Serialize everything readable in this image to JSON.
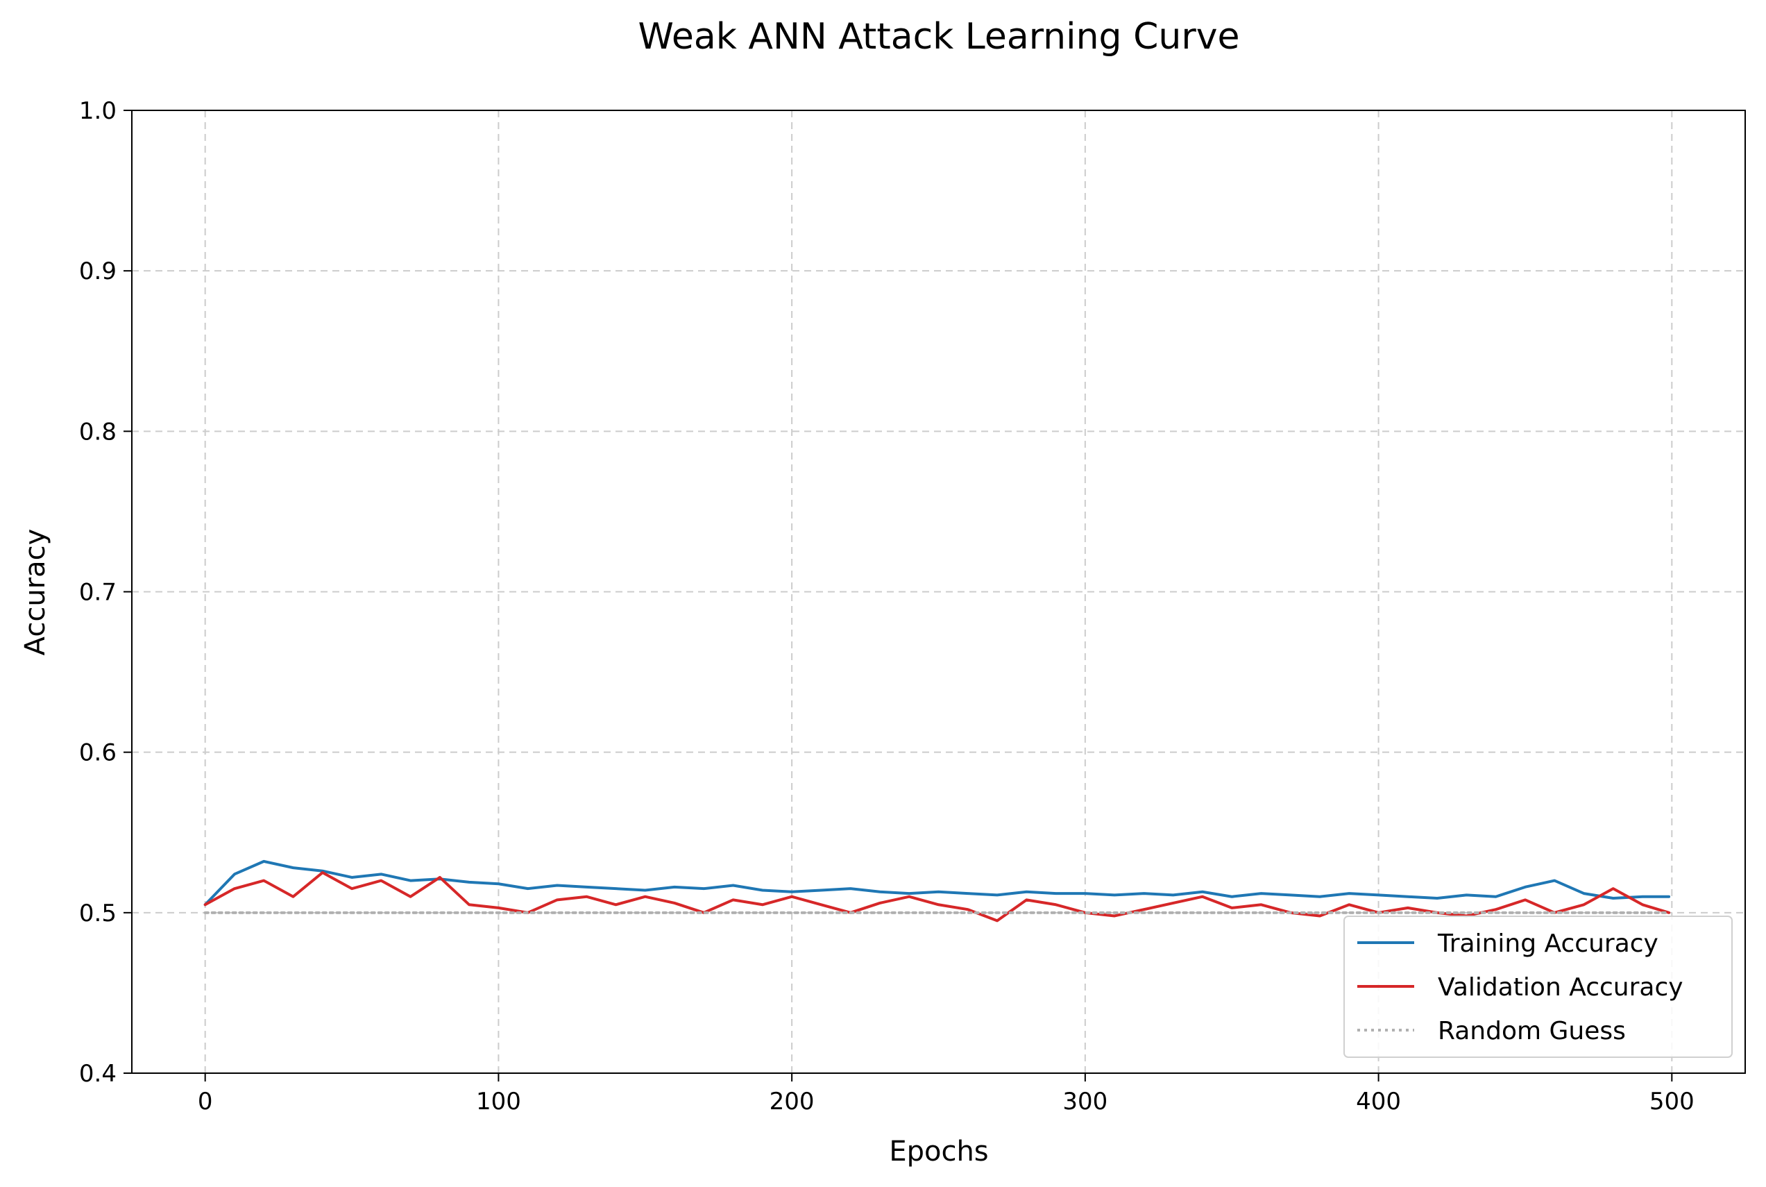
{
  "chart_data": {
    "type": "line",
    "title": "Weak ANN Attack Learning Curve",
    "xlabel": "Epochs",
    "ylabel": "Accuracy",
    "xlim": [
      -25,
      525
    ],
    "ylim": [
      0.4,
      1.0
    ],
    "x_ticks": [
      0,
      100,
      200,
      300,
      400,
      500
    ],
    "y_ticks": [
      0.4,
      0.5,
      0.6,
      0.7,
      0.8,
      0.9,
      1.0
    ],
    "x_tick_labels": [
      "0",
      "100",
      "200",
      "300",
      "400",
      "500"
    ],
    "y_tick_labels": [
      "0.4",
      "0.5",
      "0.6",
      "0.7",
      "0.8",
      "0.9",
      "1.0"
    ],
    "grid": true,
    "legend_position": "lower-right",
    "x": [
      0,
      10,
      20,
      30,
      40,
      50,
      60,
      70,
      80,
      90,
      100,
      110,
      120,
      130,
      140,
      150,
      160,
      170,
      180,
      190,
      200,
      210,
      220,
      230,
      240,
      250,
      260,
      270,
      280,
      290,
      300,
      310,
      320,
      330,
      340,
      350,
      360,
      370,
      380,
      390,
      400,
      410,
      420,
      430,
      440,
      450,
      460,
      470,
      480,
      490,
      499
    ],
    "series": [
      {
        "name": "Training Accuracy",
        "color": "#1f77b4",
        "style": "solid",
        "values": [
          0.505,
          0.524,
          0.532,
          0.528,
          0.526,
          0.522,
          0.524,
          0.52,
          0.521,
          0.519,
          0.518,
          0.515,
          0.517,
          0.516,
          0.515,
          0.514,
          0.516,
          0.515,
          0.517,
          0.514,
          0.513,
          0.514,
          0.515,
          0.513,
          0.512,
          0.513,
          0.512,
          0.511,
          0.513,
          0.512,
          0.512,
          0.511,
          0.512,
          0.511,
          0.513,
          0.51,
          0.512,
          0.511,
          0.51,
          0.512,
          0.511,
          0.51,
          0.509,
          0.511,
          0.51,
          0.516,
          0.52,
          0.512,
          0.509,
          0.51,
          0.51
        ]
      },
      {
        "name": "Validation Accuracy",
        "color": "#d62728",
        "style": "solid",
        "values": [
          0.505,
          0.515,
          0.52,
          0.51,
          0.525,
          0.515,
          0.52,
          0.51,
          0.522,
          0.505,
          0.503,
          0.5,
          0.508,
          0.51,
          0.505,
          0.51,
          0.506,
          0.5,
          0.508,
          0.505,
          0.51,
          0.505,
          0.5,
          0.506,
          0.51,
          0.505,
          0.502,
          0.495,
          0.508,
          0.505,
          0.5,
          0.498,
          0.502,
          0.506,
          0.51,
          0.503,
          0.505,
          0.5,
          0.498,
          0.505,
          0.5,
          0.503,
          0.5,
          0.498,
          0.502,
          0.508,
          0.5,
          0.505,
          0.515,
          0.505,
          0.5
        ]
      },
      {
        "name": "Random Guess",
        "color": "#b0b0b0",
        "style": "dotted",
        "values": [
          0.5,
          0.5,
          0.5,
          0.5,
          0.5,
          0.5,
          0.5,
          0.5,
          0.5,
          0.5,
          0.5,
          0.5,
          0.5,
          0.5,
          0.5,
          0.5,
          0.5,
          0.5,
          0.5,
          0.5,
          0.5,
          0.5,
          0.5,
          0.5,
          0.5,
          0.5,
          0.5,
          0.5,
          0.5,
          0.5,
          0.5,
          0.5,
          0.5,
          0.5,
          0.5,
          0.5,
          0.5,
          0.5,
          0.5,
          0.5,
          0.5,
          0.5,
          0.5,
          0.5,
          0.5,
          0.5,
          0.5,
          0.5,
          0.5,
          0.5,
          0.5
        ]
      }
    ]
  }
}
